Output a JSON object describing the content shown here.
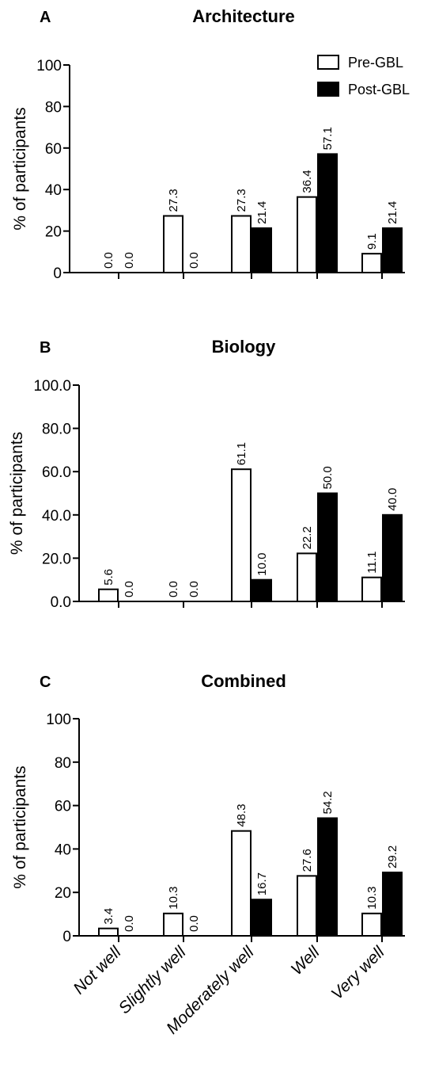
{
  "legend": [
    {
      "label": "Pre-GBL",
      "color": "#ffffff"
    },
    {
      "label": "Post-GBL",
      "color": "#000000"
    }
  ],
  "chart_data": [
    {
      "type": "bar",
      "panel": "A",
      "title": "Architecture",
      "ylabel": "% of participants",
      "xlabel": "",
      "ylim": [
        0,
        100
      ],
      "yticks": [
        "0",
        "20",
        "40",
        "60",
        "80",
        "100"
      ],
      "categories": [
        "Not well",
        "Slightly well",
        "Moderately well",
        "Well",
        "Very well"
      ],
      "show_category_labels": false,
      "series": [
        {
          "name": "Pre-GBL",
          "values": [
            0.0,
            27.3,
            27.3,
            36.4,
            9.1
          ],
          "labels": [
            "0.0",
            "27.3",
            "27.3",
            "36.4",
            "9.1"
          ]
        },
        {
          "name": "Post-GBL",
          "values": [
            0.0,
            0.0,
            21.4,
            57.1,
            21.4
          ],
          "labels": [
            "0.0",
            "0.0",
            "21.4",
            "57.1",
            "21.4"
          ]
        }
      ],
      "legend": "top-right"
    },
    {
      "type": "bar",
      "panel": "B",
      "title": "Biology",
      "ylabel": "% of participants",
      "xlabel": "",
      "ylim": [
        0,
        100
      ],
      "yticks": [
        "0.0",
        "20.0",
        "40.0",
        "60.0",
        "80.0",
        "100.0"
      ],
      "categories": [
        "Not well",
        "Slightly well",
        "Moderately well",
        "Well",
        "Very well"
      ],
      "show_category_labels": false,
      "series": [
        {
          "name": "Pre-GBL",
          "values": [
            5.6,
            0.0,
            61.1,
            22.2,
            11.1
          ],
          "labels": [
            "5.6",
            "0.0",
            "61.1",
            "22.2",
            "11.1"
          ]
        },
        {
          "name": "Post-GBL",
          "values": [
            0.0,
            0.0,
            10.0,
            50.0,
            40.0
          ],
          "labels": [
            "0.0",
            "0.0",
            "10.0",
            "50.0",
            "40.0"
          ]
        }
      ]
    },
    {
      "type": "bar",
      "panel": "C",
      "title": "Combined",
      "ylabel": "% of participants",
      "xlabel": "",
      "ylim": [
        0,
        100
      ],
      "yticks": [
        "0",
        "20",
        "40",
        "60",
        "80",
        "100"
      ],
      "categories": [
        "Not well",
        "Slightly well",
        "Moderately well",
        "Well",
        "Very well"
      ],
      "show_category_labels": true,
      "series": [
        {
          "name": "Pre-GBL",
          "values": [
            3.4,
            10.3,
            48.3,
            27.6,
            10.3
          ],
          "labels": [
            "3.4",
            "10.3",
            "48.3",
            "27.6",
            "10.3"
          ]
        },
        {
          "name": "Post-GBL",
          "values": [
            0.0,
            0.0,
            16.7,
            54.2,
            29.2
          ],
          "labels": [
            "0.0",
            "0.0",
            "16.7",
            "54.2",
            "29.2"
          ]
        }
      ]
    }
  ]
}
